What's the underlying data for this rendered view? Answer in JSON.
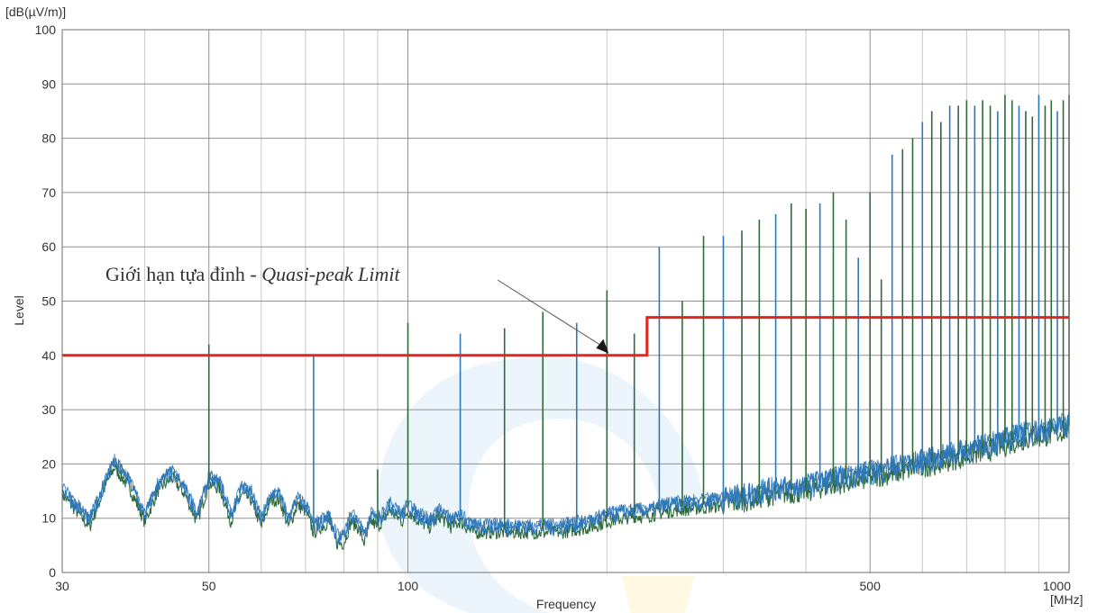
{
  "chart_data": {
    "type": "line",
    "title": "",
    "xlabel": "Frequency",
    "ylabel": "Level",
    "y_unit": "[dB(µV/m)]",
    "x_unit": "[MHz]",
    "x_scale": "log",
    "xlim": [
      30,
      1000
    ],
    "ylim": [
      0,
      100
    ],
    "grid": true,
    "x_ticks": [
      30,
      50,
      100,
      500,
      1000
    ],
    "y_ticks": [
      0,
      10,
      20,
      30,
      40,
      50,
      60,
      70,
      80,
      90,
      100
    ],
    "colors": {
      "limit": "#e52421",
      "noise_blue": "#2f78b8",
      "noise_green": "#2e6a3a",
      "grid_major": "#8f8f8f",
      "grid_minor": "#c8c8c8",
      "watermark": "#d5e8f7"
    },
    "series": [
      {
        "kind": "limit",
        "x": [
          30,
          230,
          230,
          1000
        ],
        "y": [
          40,
          40,
          47,
          47
        ]
      },
      {
        "kind": "noise_floor",
        "x": [
          30,
          31,
          33,
          35,
          36,
          38,
          40,
          42,
          44,
          46,
          48,
          50,
          52,
          54,
          56,
          58,
          60,
          62,
          64,
          66,
          68,
          70,
          72,
          74,
          76,
          78,
          80,
          82,
          84,
          86,
          88,
          90,
          94,
          98,
          100,
          104,
          108,
          112,
          116,
          120,
          125,
          130,
          140,
          150,
          160,
          170,
          180,
          190,
          200,
          210,
          220,
          230,
          250,
          280,
          300,
          330,
          360,
          400,
          450,
          500,
          550,
          600,
          650,
          700,
          750,
          800,
          850,
          900,
          950,
          1000
        ],
        "y": [
          15,
          13,
          9,
          17,
          20,
          16,
          10,
          16,
          18,
          15,
          10,
          17,
          16,
          10,
          15,
          14,
          9,
          14,
          14,
          9,
          13,
          12,
          8,
          9,
          10,
          6,
          6,
          10,
          9,
          6,
          10,
          9,
          12,
          10,
          12,
          10,
          9,
          11,
          9,
          10,
          8,
          8,
          8,
          8,
          8,
          8,
          8.5,
          9,
          10,
          10.5,
          11,
          11,
          12,
          12.5,
          13,
          14,
          15,
          15.5,
          17,
          18,
          19,
          20,
          21,
          22,
          23,
          24,
          25,
          25.5,
          26,
          27
        ]
      },
      {
        "kind": "peaks",
        "x": [
          50,
          72,
          90,
          100,
          120,
          140,
          160,
          180,
          200,
          220,
          240,
          260,
          280,
          300,
          320,
          340,
          360,
          380,
          400,
          420,
          440,
          460,
          480,
          500,
          520,
          540,
          560,
          580,
          600,
          620,
          640,
          660,
          680,
          700,
          720,
          740,
          760,
          780,
          800,
          820,
          840,
          860,
          880,
          900,
          920,
          940,
          960,
          980,
          1000
        ],
        "y": [
          42,
          40,
          19,
          46,
          44,
          45,
          48,
          46,
          52,
          44,
          60,
          50,
          62,
          62,
          63,
          65,
          66,
          68,
          67,
          68,
          70,
          65,
          58,
          70,
          54,
          77,
          78,
          80,
          83,
          85,
          83,
          86,
          86,
          87,
          86,
          87,
          86,
          85,
          88,
          87,
          86,
          85,
          84,
          88,
          86,
          87,
          85,
          87,
          88
        ]
      }
    ],
    "annotation": {
      "text_plain": "Giới hạn tựa đỉnh - ",
      "text_italic": "Quasi-peak Limit",
      "target_x": 200,
      "target_y": 40
    }
  }
}
